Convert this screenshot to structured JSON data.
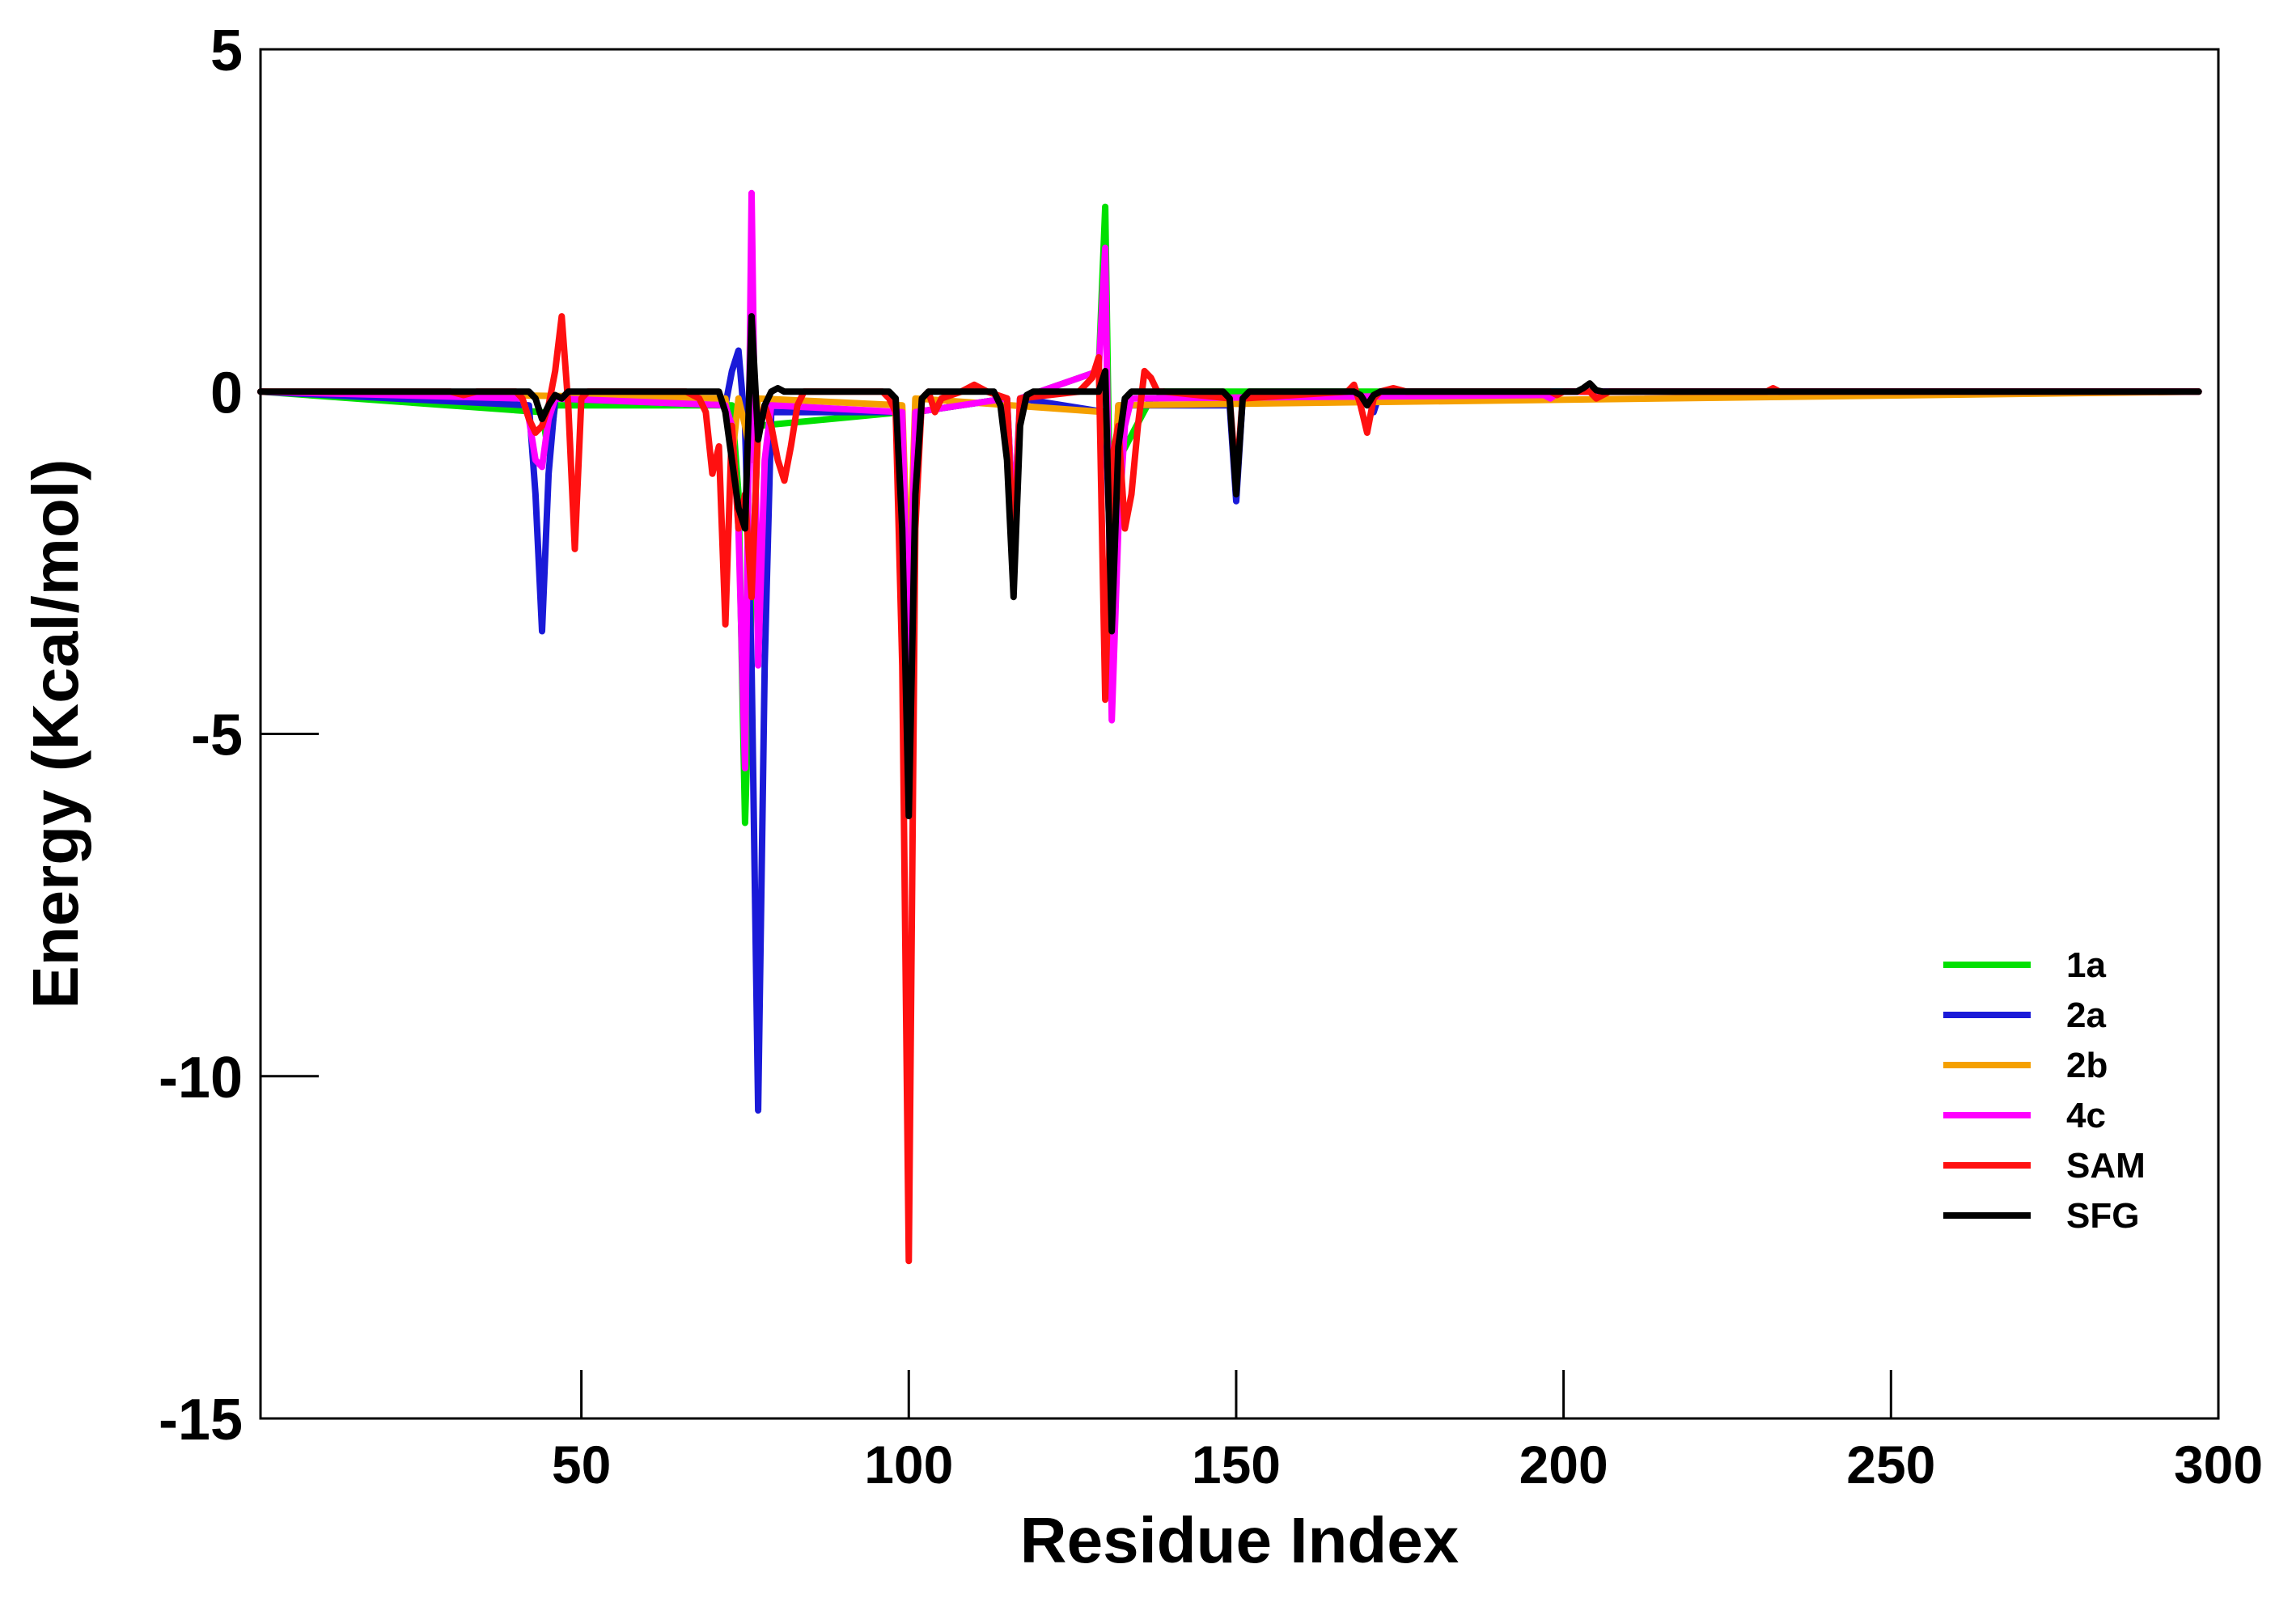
{
  "chart_data": {
    "type": "line",
    "title": "",
    "xlabel": "Residue Index",
    "ylabel": "Energy (Kcal/mol)",
    "xlim": [
      1,
      300
    ],
    "ylim": [
      -15,
      5
    ],
    "x_ticks": [
      50,
      100,
      150,
      200,
      250,
      300
    ],
    "x_tick_labels": [
      "50",
      "100",
      "150",
      "200",
      "250",
      "300"
    ],
    "y_ticks": [
      5,
      0,
      -5,
      -10,
      -15
    ],
    "y_tick_labels": [
      "5",
      "0",
      "-5",
      "-10",
      "-15"
    ],
    "grid": false,
    "legend_position": "right",
    "x_end": 297,
    "series": [
      {
        "name": "1a",
        "color": "#00e000",
        "points": [
          [
            44,
            -0.3
          ],
          [
            45,
            -0.9
          ],
          [
            46,
            -0.2
          ],
          [
            73,
            -0.2
          ],
          [
            74,
            -1.5
          ],
          [
            75,
            -6.3
          ],
          [
            76,
            -3.0
          ],
          [
            77,
            -0.5
          ],
          [
            99,
            -0.3
          ],
          [
            100,
            -4.5
          ],
          [
            101,
            -0.3
          ],
          [
            115,
            -0.1
          ],
          [
            116,
            -2.0
          ],
          [
            117,
            -0.1
          ],
          [
            129,
            0.3
          ],
          [
            130,
            2.7
          ],
          [
            131,
            -3.5
          ],
          [
            132,
            -1.0
          ],
          [
            137,
            -0.1
          ],
          [
            138,
            -0.1
          ],
          [
            139,
            0
          ]
        ]
      },
      {
        "name": "2a",
        "color": "#1a1ad8",
        "points": [
          [
            42,
            -0.2
          ],
          [
            43,
            -1.5
          ],
          [
            44,
            -3.5
          ],
          [
            45,
            -1.2
          ],
          [
            46,
            -0.1
          ],
          [
            72,
            -0.2
          ],
          [
            73,
            0.3
          ],
          [
            74,
            0.6
          ],
          [
            75,
            -0.5
          ],
          [
            76,
            -4.0
          ],
          [
            77,
            -10.5
          ],
          [
            78,
            -4.0
          ],
          [
            79,
            -0.3
          ],
          [
            99,
            -0.3
          ],
          [
            100,
            -4.5
          ],
          [
            101,
            -0.3
          ],
          [
            115,
            -0.1
          ],
          [
            116,
            -2.5
          ],
          [
            117,
            -0.1
          ],
          [
            130,
            -0.3
          ],
          [
            131,
            -3.0
          ],
          [
            132,
            -0.2
          ],
          [
            149,
            -0.2
          ],
          [
            150,
            -1.6
          ],
          [
            151,
            -0.1
          ],
          [
            170,
            -0.1
          ],
          [
            171,
            -0.3
          ],
          [
            172,
            0
          ]
        ]
      },
      {
        "name": "2b",
        "color": "#f5a000",
        "points": [
          [
            72,
            -0.1
          ],
          [
            73,
            -1.0
          ],
          [
            74,
            -0.1
          ],
          [
            75,
            -0.5
          ],
          [
            76,
            -1.0
          ],
          [
            77,
            -0.1
          ],
          [
            99,
            -0.2
          ],
          [
            100,
            -3.0
          ],
          [
            101,
            -0.1
          ],
          [
            130,
            -0.3
          ],
          [
            131,
            -2.0
          ],
          [
            132,
            -0.2
          ]
        ]
      },
      {
        "name": "4c",
        "color": "#ff00ff",
        "points": [
          [
            41,
            -0.1
          ],
          [
            42,
            -0.4
          ],
          [
            43,
            -1.0
          ],
          [
            44,
            -1.1
          ],
          [
            45,
            -0.4
          ],
          [
            46,
            -0.1
          ],
          [
            72,
            -0.2
          ],
          [
            73,
            -0.5
          ],
          [
            74,
            -2.0
          ],
          [
            75,
            -5.5
          ],
          [
            76,
            2.9
          ],
          [
            77,
            -4.0
          ],
          [
            78,
            -1.0
          ],
          [
            79,
            -0.2
          ],
          [
            99,
            -0.3
          ],
          [
            100,
            -4.0
          ],
          [
            101,
            -0.3
          ],
          [
            115,
            -0.1
          ],
          [
            116,
            -2.0
          ],
          [
            117,
            -0.1
          ],
          [
            129,
            0.3
          ],
          [
            130,
            2.1
          ],
          [
            131,
            -4.8
          ],
          [
            132,
            -2.0
          ],
          [
            133,
            -0.5
          ],
          [
            134,
            -0.1
          ],
          [
            197,
            -0.05
          ],
          [
            198,
            -0.1
          ],
          [
            199,
            -0.02
          ],
          [
            200,
            0
          ]
        ]
      },
      {
        "name": "SAM",
        "color": "#ff1010",
        "points": [
          [
            30,
            0
          ],
          [
            32,
            -0.05
          ],
          [
            34,
            0
          ],
          [
            40,
            0
          ],
          [
            41,
            -0.1
          ],
          [
            42,
            -0.4
          ],
          [
            43,
            -0.6
          ],
          [
            44,
            -0.5
          ],
          [
            45,
            -0.2
          ],
          [
            46,
            0.3
          ],
          [
            47,
            1.1
          ],
          [
            48,
            -0.2
          ],
          [
            49,
            -2.3
          ],
          [
            50,
            -0.1
          ],
          [
            51,
            0
          ],
          [
            66,
            0
          ],
          [
            68,
            -0.1
          ],
          [
            69,
            -0.3
          ],
          [
            70,
            -1.2
          ],
          [
            71,
            -0.8
          ],
          [
            72,
            -3.4
          ],
          [
            73,
            -0.5
          ],
          [
            74,
            -2.0
          ],
          [
            75,
            -1.5
          ],
          [
            76,
            -3.0
          ],
          [
            77,
            -0.5
          ],
          [
            78,
            -0.2
          ],
          [
            79,
            -0.5
          ],
          [
            80,
            -1.0
          ],
          [
            81,
            -1.3
          ],
          [
            82,
            -0.8
          ],
          [
            83,
            -0.2
          ],
          [
            84,
            0
          ],
          [
            96,
            0
          ],
          [
            97,
            -0.1
          ],
          [
            98,
            -0.3
          ],
          [
            99,
            -4.0
          ],
          [
            100,
            -12.7
          ],
          [
            101,
            -2.0
          ],
          [
            102,
            -0.1
          ],
          [
            103,
            0
          ],
          [
            104,
            -0.3
          ],
          [
            105,
            -0.1
          ],
          [
            108,
            0
          ],
          [
            110,
            0.1
          ],
          [
            112,
            0
          ],
          [
            115,
            -0.1
          ],
          [
            116,
            -2.5
          ],
          [
            117,
            -0.1
          ],
          [
            126,
            0
          ],
          [
            127,
            0.1
          ],
          [
            128,
            0.2
          ],
          [
            129,
            0.5
          ],
          [
            130,
            -4.5
          ],
          [
            131,
            -1.0
          ],
          [
            132,
            -0.5
          ],
          [
            133,
            -2.0
          ],
          [
            134,
            -1.5
          ],
          [
            135,
            -0.5
          ],
          [
            136,
            0.3
          ],
          [
            137,
            0.2
          ],
          [
            138,
            0
          ],
          [
            139,
            0
          ],
          [
            149,
            -0.1
          ],
          [
            150,
            -1.3
          ],
          [
            151,
            -0.1
          ],
          [
            167,
            0
          ],
          [
            168,
            0.1
          ],
          [
            169,
            -0.2
          ],
          [
            170,
            -0.6
          ],
          [
            171,
            -0.1
          ],
          [
            172,
            0
          ],
          [
            174,
            0.05
          ],
          [
            176,
            0
          ],
          [
            198,
            0
          ],
          [
            199,
            -0.05
          ],
          [
            200,
            0
          ],
          [
            204,
            0
          ],
          [
            205,
            -0.1
          ],
          [
            206,
            -0.05
          ],
          [
            207,
            0
          ],
          [
            231,
            0
          ],
          [
            232,
            0.05
          ],
          [
            233,
            0
          ]
        ]
      },
      {
        "name": "SFG",
        "color": "#000000",
        "points": [
          [
            1,
            0
          ],
          [
            42,
            0
          ],
          [
            43,
            -0.1
          ],
          [
            44,
            -0.4
          ],
          [
            45,
            -0.2
          ],
          [
            46,
            -0.05
          ],
          [
            47,
            -0.1
          ],
          [
            48,
            0
          ],
          [
            71,
            0
          ],
          [
            72,
            -0.3
          ],
          [
            73,
            -1.0
          ],
          [
            74,
            -1.7
          ],
          [
            75,
            -2.0
          ],
          [
            76,
            1.1
          ],
          [
            77,
            -0.7
          ],
          [
            78,
            -0.2
          ],
          [
            79,
            0
          ],
          [
            80,
            0.05
          ],
          [
            81,
            0
          ],
          [
            97,
            0
          ],
          [
            98,
            -0.1
          ],
          [
            99,
            -2.0
          ],
          [
            100,
            -6.2
          ],
          [
            101,
            -1.5
          ],
          [
            102,
            -0.1
          ],
          [
            103,
            0
          ],
          [
            113,
            0
          ],
          [
            114,
            -0.2
          ],
          [
            115,
            -1.0
          ],
          [
            116,
            -3.0
          ],
          [
            117,
            -0.5
          ],
          [
            118,
            -0.05
          ],
          [
            119,
            0
          ],
          [
            129,
            0
          ],
          [
            130,
            0.3
          ],
          [
            131,
            -3.5
          ],
          [
            132,
            -0.8
          ],
          [
            133,
            -0.1
          ],
          [
            134,
            0
          ],
          [
            148,
            0
          ],
          [
            149,
            -0.1
          ],
          [
            150,
            -1.5
          ],
          [
            151,
            -0.1
          ],
          [
            152,
            0
          ],
          [
            168,
            0
          ],
          [
            169,
            -0.05
          ],
          [
            170,
            -0.2
          ],
          [
            171,
            -0.05
          ],
          [
            172,
            0
          ],
          [
            202,
            0
          ],
          [
            203,
            0.05
          ],
          [
            204,
            0.12
          ],
          [
            205,
            0.02
          ],
          [
            206,
            0
          ],
          [
            297,
            0
          ]
        ]
      }
    ]
  }
}
